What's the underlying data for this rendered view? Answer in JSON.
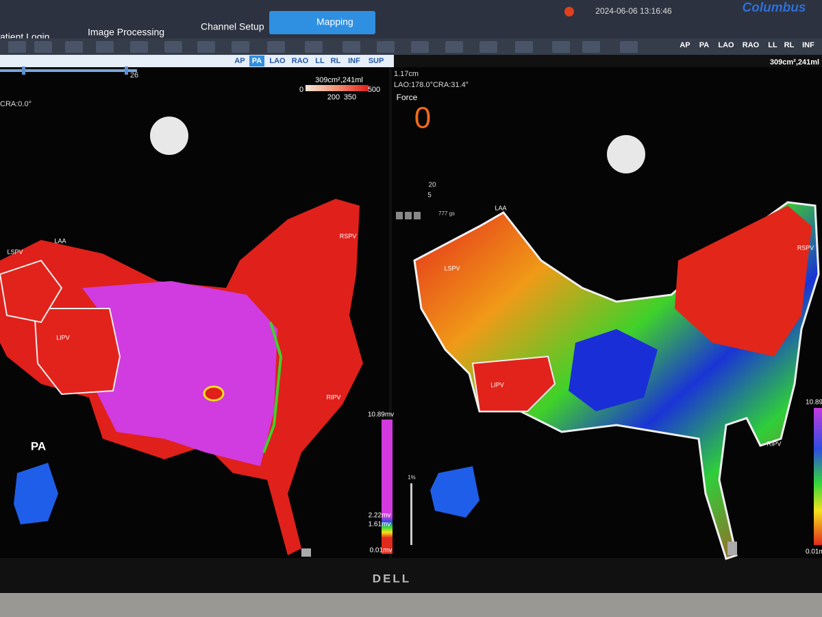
{
  "top_bar": {
    "tabs": [
      "atient Login",
      "Image Processing",
      "Channel Setup",
      "Mapping"
    ],
    "datetime": "2024-06-06 13:16:46",
    "brand": "Columbus"
  },
  "toolbar": {
    "view_buttons": [
      "AP",
      "PA",
      "LAO",
      "RAO",
      "LL",
      "RL",
      "INF"
    ]
  },
  "left_view": {
    "view_buttons": [
      "AP",
      "PA",
      "LAO",
      "RAO",
      "LL",
      "RL",
      "INF",
      "SUP"
    ],
    "slider_value": "26",
    "orientation": "CRA:0.0°",
    "area_volume": "309cm²,241ml",
    "scale_labels": [
      "0",
      "500",
      "200",
      "350"
    ],
    "anatomy_labels": [
      "LSPV",
      "LAA",
      "RSPV",
      "LIPV",
      "RIPV"
    ],
    "view_label": "PA",
    "voltage_scale": [
      "10.89mv",
      "2.22mv",
      "1.61mv",
      "0.01mv"
    ]
  },
  "right_view": {
    "area_volume": "309cm²,241ml",
    "distance": "1.17cm",
    "orientation": "LAO:178.0°CRA:31.4°",
    "force_label": "Force",
    "force_value": "0",
    "counters": [
      "20",
      "5"
    ],
    "gs": "777 gs",
    "anatomy_labels": [
      "LAA",
      "LSPV",
      "RSPV",
      "LIPV",
      "RIPV"
    ],
    "voltage_scale": [
      "10.89",
      "0.01m"
    ],
    "zoom": "1%"
  },
  "monitor": {
    "brand": "DELL"
  }
}
